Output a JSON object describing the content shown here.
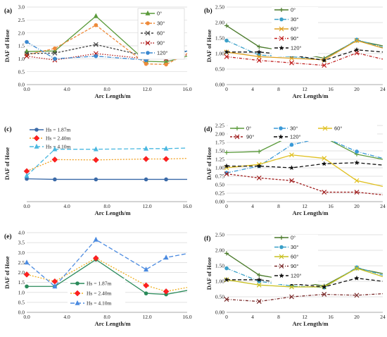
{
  "chart_data": [
    {
      "panel": "(a)",
      "type": "line",
      "xlabel": "Arc Length/m",
      "ylabel": "DAF of Hose",
      "xlim": [
        0,
        16
      ],
      "ylim": [
        0,
        3.0
      ],
      "xticks": [
        "0.0",
        "4.0",
        "8.0",
        "12.0",
        "16.0"
      ],
      "yticks": [
        "0.0",
        "0.5",
        "1.0",
        "1.5",
        "2.0",
        "2.5",
        "3.0"
      ],
      "legend": "top-right",
      "x": [
        0,
        2.8,
        6.9,
        11.9,
        13.9,
        16
      ],
      "series": [
        {
          "name": "0°",
          "color": "#5a9a3a",
          "dash": "solid",
          "marker": "triangle",
          "values": [
            1.28,
            1.3,
            2.65,
            0.9,
            0.88,
            1.1
          ]
        },
        {
          "name": "30°",
          "color": "#ee8a3a",
          "dash": "4,2",
          "marker": "circle",
          "values": [
            1.15,
            1.4,
            2.3,
            0.8,
            0.78,
            1.2
          ]
        },
        {
          "name": "60°",
          "color": "#444444",
          "dash": "3,2",
          "marker": "x",
          "values": [
            1.2,
            1.22,
            1.55,
            1.1,
            1.0,
            1.3
          ]
        },
        {
          "name": "90°",
          "color": "#b01818",
          "dash": "1.5,2",
          "marker": "x",
          "values": [
            1.1,
            0.95,
            1.2,
            1.0,
            1.0,
            1.15
          ]
        },
        {
          "name": "120°",
          "color": "#3a88d0",
          "dash": "6,2,1,2",
          "marker": "circle",
          "values": [
            1.65,
            1.0,
            1.1,
            0.95,
            1.2,
            1.3
          ]
        }
      ]
    },
    {
      "panel": "(b)",
      "type": "line",
      "xlabel": "Arc Length/m",
      "ylabel": "DAF of Hose",
      "xlim": [
        0,
        24
      ],
      "ylim": [
        0,
        2.5
      ],
      "xticks": [
        "0",
        "4",
        "8",
        "12",
        "16",
        "20",
        "24"
      ],
      "yticks": [
        "0.00",
        "0.50",
        "1.00",
        "1.50",
        "2.00",
        "2.50"
      ],
      "legend": "top-right",
      "x": [
        0,
        5,
        10,
        15,
        20,
        24
      ],
      "series": [
        {
          "name": "0°",
          "color": "#4a7a2a",
          "dash": "solid",
          "marker": "plus",
          "values": [
            1.9,
            1.22,
            1.05,
            0.85,
            1.42,
            1.25
          ]
        },
        {
          "name": "30°",
          "color": "#3aa0c8",
          "dash": "6,2,1,2",
          "marker": "circle",
          "values": [
            1.42,
            0.95,
            0.9,
            0.8,
            1.45,
            1.2
          ]
        },
        {
          "name": "60°",
          "color": "#e0a020",
          "dash": "solid",
          "marker": "x",
          "values": [
            1.05,
            0.9,
            0.85,
            0.8,
            1.42,
            1.18
          ]
        },
        {
          "name": "90°",
          "color": "#c02020",
          "dash": "4,2,1,2",
          "marker": "x",
          "values": [
            0.9,
            0.78,
            0.7,
            0.62,
            1.02,
            0.82
          ]
        },
        {
          "name": "120°",
          "color": "#111111",
          "dash": "5,3",
          "marker": "star",
          "values": [
            1.05,
            1.05,
            0.95,
            0.78,
            1.12,
            1.05
          ]
        }
      ]
    },
    {
      "panel": "(c)",
      "type": "line",
      "xlabel": "Arc Length/m",
      "ylabel": "DAF of Hose",
      "xlim": [
        0,
        16
      ],
      "ylim": [
        0,
        2.5
      ],
      "xticks": [
        "0.0",
        "4.0",
        "8.0",
        "12.0",
        "16.0"
      ],
      "yticks": [],
      "legend": "top-left",
      "x": [
        0,
        2.8,
        6.9,
        11.9,
        13.9,
        16
      ],
      "series": [
        {
          "name": "Hs = 1.87m",
          "color": "#3a6aa8",
          "dash": "solid",
          "marker": "circle",
          "values": [
            0.75,
            0.73,
            0.73,
            0.73,
            0.73,
            0.73
          ]
        },
        {
          "name": "Hs = 2.40m",
          "color": "#f0a020",
          "dash": "2,2",
          "marker": "diamond",
          "values": [
            1.0,
            1.38,
            1.37,
            1.4,
            1.4,
            1.42
          ]
        },
        {
          "name": "Hs = 4.10m",
          "color": "#4ab8e0",
          "dash": "6,3",
          "marker": "triangle",
          "values": [
            0.85,
            1.72,
            1.72,
            1.74,
            1.74,
            1.76
          ]
        }
      ]
    },
    {
      "panel": "(d)",
      "type": "line",
      "xlabel": "Arc Length/m",
      "ylabel": "DAF of Hose",
      "xlim": [
        0,
        24
      ],
      "ylim": [
        0,
        2.25
      ],
      "xticks": [
        "0",
        "4",
        "8",
        "12",
        "16",
        "20",
        "24"
      ],
      "yticks": [
        "0.00",
        "0.25",
        "0.50",
        "0.75",
        "1.00",
        "1.25",
        "1.50",
        "1.75",
        "2.00",
        "2.25"
      ],
      "legend": "top",
      "x": [
        0,
        5,
        10,
        15,
        20,
        24
      ],
      "series": [
        {
          "name": "0°",
          "color": "#5a9a3a",
          "dash": "solid",
          "marker": "plus",
          "values": [
            1.45,
            1.48,
            1.95,
            1.9,
            1.4,
            1.25
          ]
        },
        {
          "name": "30°",
          "color": "#3a9ad8",
          "dash": "6,2,1,2",
          "marker": "circle",
          "values": [
            0.85,
            1.05,
            1.68,
            1.9,
            1.48,
            1.28
          ]
        },
        {
          "name": "60°",
          "color": "#e0c020",
          "dash": "solid",
          "marker": "x",
          "values": [
            1.0,
            1.1,
            1.38,
            1.28,
            0.62,
            0.45
          ]
        },
        {
          "name": "90°",
          "color": "#a02020",
          "dash": "3,2",
          "marker": "x",
          "values": [
            0.82,
            0.7,
            0.62,
            0.28,
            0.28,
            0.2
          ]
        },
        {
          "name": "120°",
          "color": "#111111",
          "dash": "5,3",
          "marker": "star",
          "values": [
            1.05,
            1.05,
            1.0,
            1.12,
            1.15,
            1.08
          ]
        }
      ]
    },
    {
      "panel": "(e)",
      "type": "line",
      "xlabel": "Arc Length/m",
      "ylabel": "DAF of Hose",
      "xlim": [
        0,
        16
      ],
      "ylim": [
        0,
        4.0
      ],
      "xticks": [
        "0.0",
        "4.0",
        "8.0",
        "12.0",
        "16.0"
      ],
      "yticks": [
        "0.0",
        "0.5",
        "1.0",
        "1.5",
        "2.0",
        "2.5",
        "3.0",
        "3.5",
        "4.0"
      ],
      "legend": "bottom-center",
      "x": [
        0,
        2.8,
        6.9,
        11.9,
        13.9,
        16
      ],
      "series": [
        {
          "name": "Hs = 1.87m",
          "color": "#2a8a5a",
          "dash": "solid",
          "marker": "circle",
          "values": [
            1.3,
            1.3,
            2.65,
            0.95,
            0.9,
            1.1
          ]
        },
        {
          "name": "Hs = 2.40m",
          "color": "#f0b020",
          "dash": "2,2",
          "marker": "diamond",
          "values": [
            1.9,
            1.55,
            2.72,
            1.35,
            1.05,
            1.25
          ]
        },
        {
          "name": "Hs = 4.10m",
          "color": "#4a8ae0",
          "dash": "6,3",
          "marker": "triangle",
          "values": [
            2.5,
            1.3,
            3.65,
            2.15,
            2.75,
            2.95
          ]
        }
      ]
    },
    {
      "panel": "(f)",
      "type": "line",
      "xlabel": "Arc Length/m",
      "ylabel": "DAF of Hose",
      "xlim": [
        0,
        24
      ],
      "ylim": [
        0,
        2.5
      ],
      "xticks": [
        "0",
        "4",
        "8",
        "12",
        "16",
        "20",
        "24"
      ],
      "yticks": [
        "0.00",
        "0.50",
        "1.00",
        "1.50",
        "2.00",
        "2.50"
      ],
      "legend": "top-right",
      "x": [
        0,
        5,
        10,
        15,
        20,
        24
      ],
      "series": [
        {
          "name": "0°",
          "color": "#4a7a2a",
          "dash": "solid",
          "marker": "plus",
          "values": [
            1.9,
            1.2,
            1.02,
            0.85,
            1.42,
            1.25
          ]
        },
        {
          "name": "30°",
          "color": "#3aa0c8",
          "dash": "6,2,1,2",
          "marker": "circle",
          "values": [
            1.42,
            1.0,
            0.85,
            0.8,
            1.45,
            1.2
          ]
        },
        {
          "name": "60°",
          "color": "#c8c020",
          "dash": "solid",
          "marker": "x",
          "values": [
            1.05,
            0.88,
            0.82,
            0.82,
            1.42,
            1.15
          ]
        },
        {
          "name": "90°",
          "color": "#7a2a2a",
          "dash": "4,2,1,2",
          "marker": "x",
          "values": [
            0.42,
            0.35,
            0.5,
            0.58,
            0.55,
            0.6
          ]
        },
        {
          "name": "120°",
          "color": "#111111",
          "dash": "5,3",
          "marker": "star",
          "values": [
            1.05,
            1.05,
            0.92,
            0.82,
            1.1,
            1.0
          ]
        }
      ]
    }
  ]
}
